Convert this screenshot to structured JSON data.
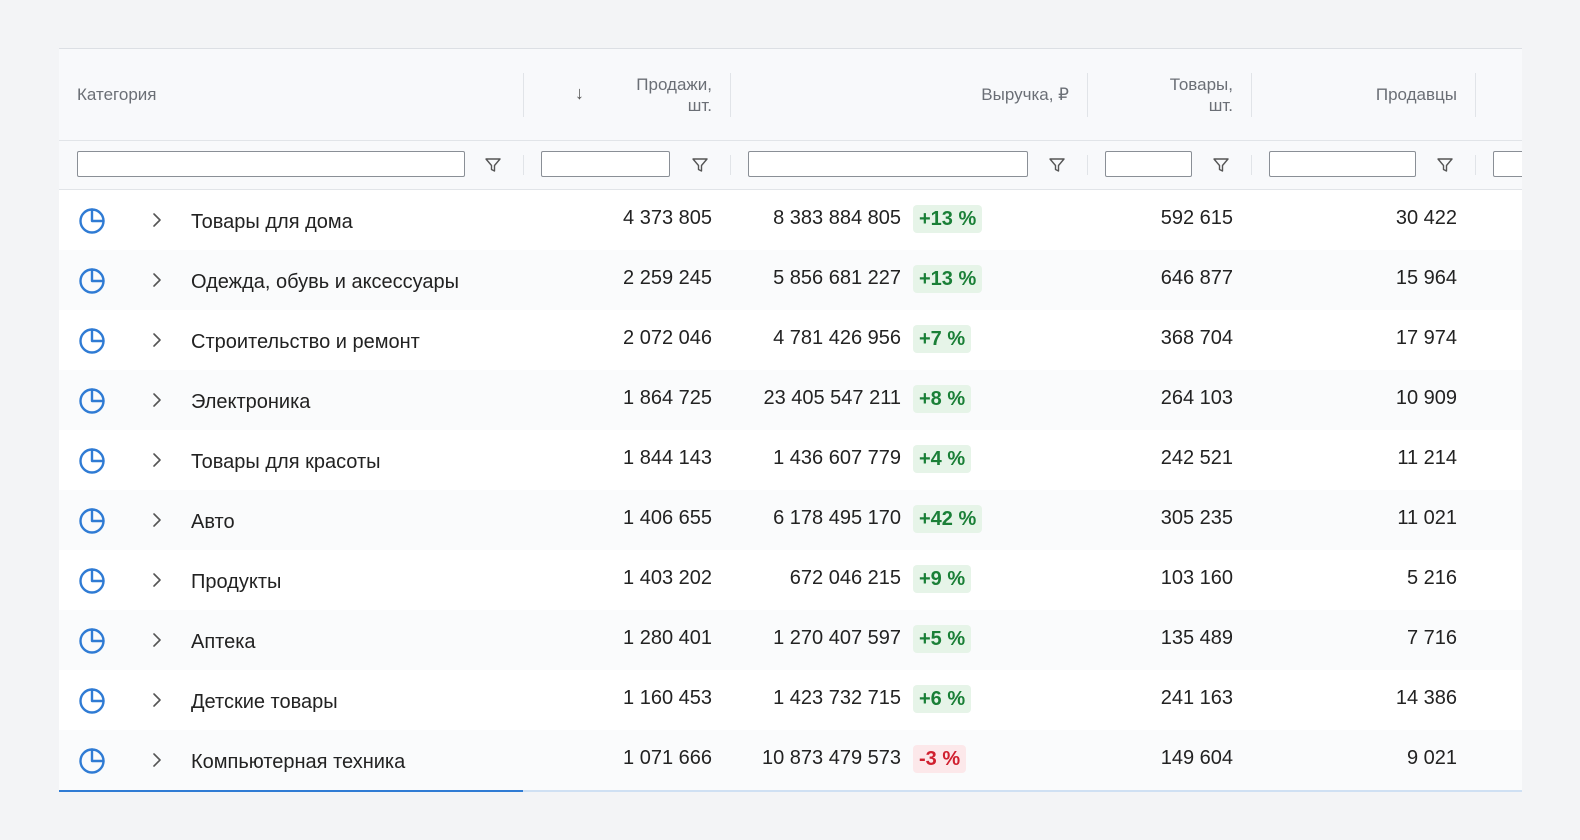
{
  "columns": {
    "category": "Категория",
    "sales_line1": "Продажи,",
    "sales_line2": "шт.",
    "sort_icon": "↓",
    "revenue": "Выручка, ₽",
    "items_line1": "Товары,",
    "items_line2": "шт.",
    "sellers": "Продавцы"
  },
  "filters": {
    "category_value": "",
    "sales_value": "",
    "revenue_value": "",
    "items_value": "",
    "sellers_value": ""
  },
  "icons": {
    "row_icon": "pie-chart-icon",
    "expand_icon": "chevron-right-icon",
    "filter_icon": "funnel-icon"
  },
  "colors": {
    "accent": "#2f7bd4",
    "positive": "#1a7f37",
    "positive_bg": "#e6f4e8",
    "negative": "#d0202f",
    "negative_bg": "#fce8ea"
  },
  "rows": [
    {
      "category": "Товары для дома",
      "sales": "4 373 805",
      "revenue": "8 383 884 805",
      "change": "+13 %",
      "trend": "pos",
      "items": "592 615",
      "sellers": "30 422"
    },
    {
      "category": "Одежда, обувь и аксессуары",
      "sales": "2 259 245",
      "revenue": "5 856 681 227",
      "change": "+13 %",
      "trend": "pos",
      "items": "646 877",
      "sellers": "15 964"
    },
    {
      "category": "Строительство и ремонт",
      "sales": "2 072 046",
      "revenue": "4 781 426 956",
      "change": "+7 %",
      "trend": "pos",
      "items": "368 704",
      "sellers": "17 974"
    },
    {
      "category": "Электроника",
      "sales": "1 864 725",
      "revenue": "23 405 547 211",
      "change": "+8 %",
      "trend": "pos",
      "items": "264 103",
      "sellers": "10 909"
    },
    {
      "category": "Товары для красоты",
      "sales": "1 844 143",
      "revenue": "1 436 607 779",
      "change": "+4 %",
      "trend": "pos",
      "items": "242 521",
      "sellers": "11 214"
    },
    {
      "category": "Авто",
      "sales": "1 406 655",
      "revenue": "6 178 495 170",
      "change": "+42 %",
      "trend": "pos",
      "items": "305 235",
      "sellers": "11 021"
    },
    {
      "category": "Продукты",
      "sales": "1 403 202",
      "revenue": "672 046 215",
      "change": "+9 %",
      "trend": "pos",
      "items": "103 160",
      "sellers": "5 216"
    },
    {
      "category": "Аптека",
      "sales": "1 280 401",
      "revenue": "1 270 407 597",
      "change": "+5 %",
      "trend": "pos",
      "items": "135 489",
      "sellers": "7 716"
    },
    {
      "category": "Детские товары",
      "sales": "1 160 453",
      "revenue": "1 423 732 715",
      "change": "+6 %",
      "trend": "pos",
      "items": "241 163",
      "sellers": "14 386"
    },
    {
      "category": "Компьютерная техника",
      "sales": "1 071 666",
      "revenue": "10 873 479 573",
      "change": "-3 %",
      "trend": "neg",
      "items": "149 604",
      "sellers": "9 021"
    }
  ]
}
